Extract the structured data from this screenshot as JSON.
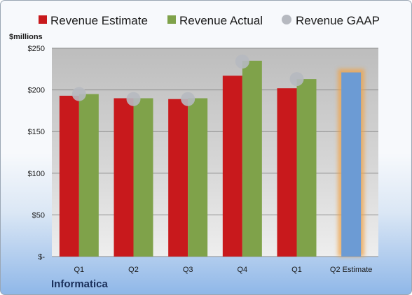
{
  "company": "Informatica",
  "chart_data": {
    "type": "bar",
    "unit_label": "$millions",
    "categories": [
      "Q1",
      "Q2",
      "Q3",
      "Q4",
      "Q1",
      "Q2 Estimate"
    ],
    "ylim": [
      0,
      250
    ],
    "yticks": [
      {
        "value": 250,
        "label": "$250"
      },
      {
        "value": 200,
        "label": "$200"
      },
      {
        "value": 150,
        "label": "$150"
      },
      {
        "value": 100,
        "label": "$100"
      },
      {
        "value": 50,
        "label": "$50"
      },
      {
        "value": 0,
        "label": "$-"
      }
    ],
    "grid": true,
    "legend_position": "top",
    "series": [
      {
        "name": "Revenue Estimate",
        "color": "#c8191c",
        "values": [
          193,
          190,
          189,
          217,
          202,
          null
        ]
      },
      {
        "name": "Revenue Actual",
        "color": "#7fa24a",
        "values": [
          195,
          190,
          190,
          235,
          213,
          null
        ]
      },
      {
        "name": "Revenue GAAP",
        "color": "#b6b9c0",
        "marker": "circle",
        "values": [
          195,
          189,
          189,
          234,
          213,
          null
        ]
      },
      {
        "name": "Q2 Estimate",
        "color": "#6c9bd4",
        "highlight": "#f0a347",
        "values": [
          null,
          null,
          null,
          null,
          null,
          221
        ]
      }
    ]
  }
}
